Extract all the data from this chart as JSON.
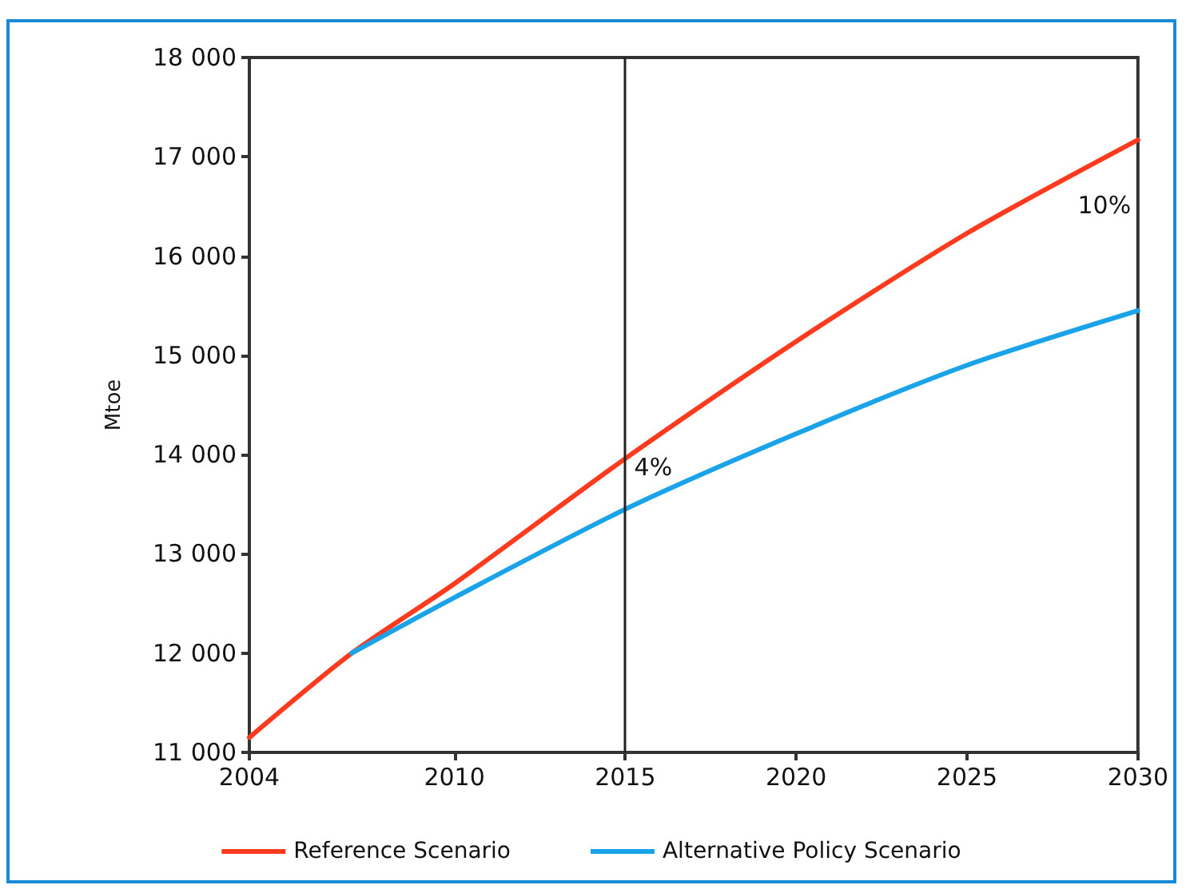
{
  "chart_data": {
    "type": "line",
    "ylabel": "Mtoe",
    "xlim": [
      2004,
      2030
    ],
    "xticks": [
      2004,
      2010,
      2015,
      2020,
      2025,
      2030
    ],
    "ylim": [
      11000,
      18000
    ],
    "yticks": [
      {
        "value": 11000,
        "label": "11 000"
      },
      {
        "value": 12000,
        "label": "12 000"
      },
      {
        "value": 13000,
        "label": "13 000"
      },
      {
        "value": 14000,
        "label": "14 000"
      },
      {
        "value": 15000,
        "label": "15 000"
      },
      {
        "value": 16000,
        "label": "16 000"
      },
      {
        "value": 17000,
        "label": "17 000"
      },
      {
        "value": 18000,
        "label": "18 000"
      }
    ],
    "series": [
      {
        "name": "Reference Scenario",
        "color": "#ff3b1f",
        "x": [
          2004,
          2007,
          2010,
          2015,
          2020,
          2025,
          2030
        ],
        "values": [
          11150,
          12000,
          12700,
          13960,
          15140,
          16230,
          17170
        ]
      },
      {
        "name": "Alternative Policy Scenario",
        "color": "#1aa3e8",
        "x": [
          2007,
          2010,
          2015,
          2020,
          2025,
          2030
        ],
        "values": [
          12000,
          12560,
          13450,
          14210,
          14900,
          15450
        ]
      }
    ],
    "ref_lines": [
      {
        "axis": "x",
        "value": 2015,
        "color": "#222222"
      }
    ],
    "annotations": [
      "4%",
      "10%"
    ],
    "grid": false,
    "legend": "bottom",
    "marker": "none",
    "line_style": "solid"
  }
}
